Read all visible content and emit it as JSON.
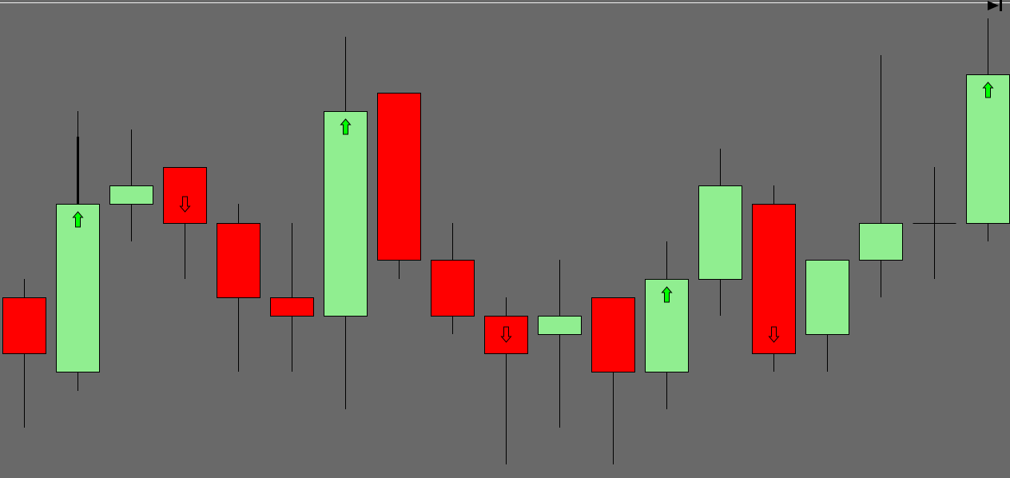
{
  "chart_data": {
    "type": "candlestick",
    "title": "",
    "xlabel": "",
    "ylabel": "",
    "grid": false,
    "ylim": [
      0,
      575
    ],
    "colors": {
      "background": "#696969",
      "bull": "#90ee90",
      "bear": "#ff0000",
      "wick": "#000000",
      "up_arrow": "#00ff00",
      "down_arrow": "#ff0000"
    },
    "candles": [
      {
        "open": 226,
        "high": 249,
        "low": 63,
        "close": 156,
        "signal": ""
      },
      {
        "open": 133,
        "high": 459,
        "low": 109,
        "close": 343,
        "signal": "up"
      },
      {
        "open": 343,
        "high": 436,
        "low": 296,
        "close": 366,
        "signal": ""
      },
      {
        "open": 389,
        "high": 389,
        "low": 249,
        "close": 319,
        "signal": "down"
      },
      {
        "open": 319,
        "high": 343,
        "low": 133,
        "close": 226,
        "signal": ""
      },
      {
        "open": 226,
        "high": 319,
        "low": 133,
        "close": 203,
        "signal": ""
      },
      {
        "open": 203,
        "high": 552,
        "low": 86,
        "close": 459,
        "signal": "up"
      },
      {
        "open": 482,
        "high": 482,
        "low": 249,
        "close": 273,
        "signal": ""
      },
      {
        "open": 273,
        "high": 319,
        "low": 180,
        "close": 203,
        "signal": ""
      },
      {
        "open": 203,
        "high": 226,
        "low": 17,
        "close": 156,
        "signal": "down"
      },
      {
        "open": 180,
        "high": 273,
        "low": 63,
        "close": 203,
        "signal": ""
      },
      {
        "open": 226,
        "high": 226,
        "low": 17,
        "close": 133,
        "signal": ""
      },
      {
        "open": 133,
        "high": 296,
        "low": 86,
        "close": 249,
        "signal": "up"
      },
      {
        "open": 249,
        "high": 412,
        "low": 203,
        "close": 366,
        "signal": ""
      },
      {
        "open": 343,
        "high": 366,
        "low": 133,
        "close": 156,
        "signal": "down"
      },
      {
        "open": 180,
        "high": 273,
        "low": 133,
        "close": 273,
        "signal": ""
      },
      {
        "open": 273,
        "high": 529,
        "low": 226,
        "close": 319,
        "signal": ""
      },
      {
        "open": 319,
        "high": 389,
        "low": 249,
        "close": 319,
        "signal": ""
      },
      {
        "open": 319,
        "high": 575,
        "low": 296,
        "close": 505,
        "signal": "up"
      }
    ]
  },
  "toolbar": {
    "shift_end_icon": "scroll-to-end-icon"
  }
}
